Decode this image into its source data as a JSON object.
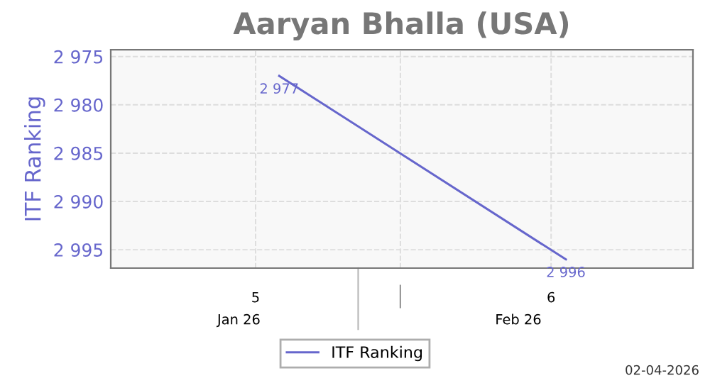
{
  "chart_data": {
    "type": "line",
    "title": "Aaryan Bhalla (USA)",
    "ylabel": "ITF Ranking",
    "x": [
      5.08,
      6.05
    ],
    "series": [
      {
        "name": "ITF Ranking",
        "color": "#6666cc",
        "values": [
          2977,
          2996
        ]
      }
    ],
    "value_labels": [
      "2 977",
      "2 996"
    ],
    "xlim": [
      4.51,
      6.48
    ],
    "xticks": [
      5,
      {
        "value": 5.49,
        "label": null
      },
      6
    ],
    "ylim": [
      2996.9,
      2974.3
    ],
    "yticks": [
      {
        "value": 2975,
        "label": "2 975"
      },
      {
        "value": 2980,
        "label": "2 980"
      },
      {
        "value": 2985,
        "label": "2 985"
      },
      {
        "value": 2990,
        "label": "2 990"
      },
      {
        "value": 2995,
        "label": "2 995"
      }
    ],
    "grid": true,
    "legend": "bottom",
    "line_style": "solid",
    "annotations": [
      "Jan 26",
      "Feb 26",
      "02-04-2026"
    ]
  }
}
